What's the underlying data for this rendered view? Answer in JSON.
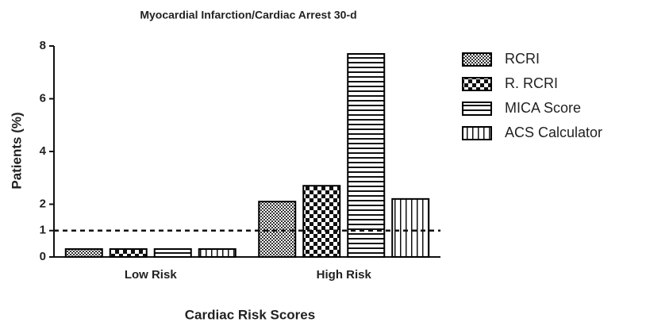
{
  "chart_data": {
    "type": "bar",
    "title": "Myocardial Infarction/Cardiac Arrest 30-d",
    "x_label": "Cardiac Risk Scores",
    "y_label": "Patients (%)",
    "categories": [
      "Low Risk",
      "High Risk"
    ],
    "series": [
      {
        "name": "RCRI",
        "color": "#000000",
        "pattern": "crosshatch",
        "values": [
          0.3,
          2.1
        ]
      },
      {
        "name": "R. RCRI",
        "color": "#000000",
        "pattern": "checker",
        "values": [
          0.3,
          2.7
        ]
      },
      {
        "name": "MICA Score",
        "color": "#000000",
        "pattern": "horizontal",
        "values": [
          0.3,
          7.7
        ]
      },
      {
        "name": "ACS Calculator",
        "color": "#000000",
        "pattern": "vertical",
        "values": [
          0.3,
          2.2
        ]
      }
    ],
    "ylim": [
      0,
      8
    ],
    "yticks": [
      0,
      1,
      2,
      4,
      6,
      8
    ],
    "reference_line": 1,
    "legend": "right"
  }
}
